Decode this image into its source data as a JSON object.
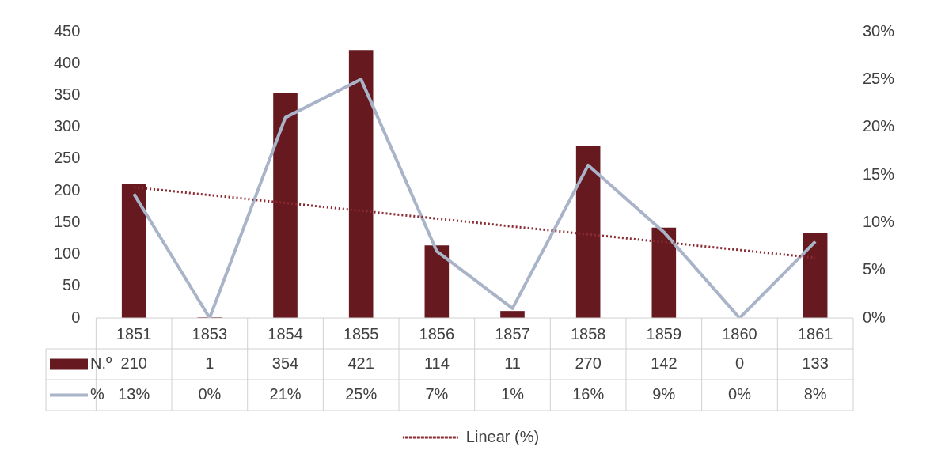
{
  "chart_data": {
    "type": "bar",
    "categories": [
      "1851",
      "1853",
      "1854",
      "1855",
      "1856",
      "1857",
      "1858",
      "1859",
      "1860",
      "1861"
    ],
    "series": [
      {
        "name": "N.º",
        "color": "#661a1f",
        "values": [
          210,
          1,
          354,
          421,
          114,
          11,
          270,
          142,
          0,
          133
        ],
        "value_labels": [
          "210",
          "1",
          "354",
          "421",
          "114",
          "11",
          "270",
          "142",
          "0",
          "133"
        ]
      },
      {
        "name": "%",
        "type": "line",
        "axis": "y2",
        "color": "#a9b4c9",
        "values": [
          13,
          0,
          21,
          25,
          7,
          1,
          16,
          9,
          0,
          8
        ],
        "value_labels": [
          "13%",
          "0%",
          "21%",
          "25%",
          "7%",
          "1%",
          "16%",
          "9%",
          "0%",
          "8%"
        ]
      },
      {
        "name": "Linear (%)",
        "type": "line",
        "axis": "y2",
        "color": "#8a2a33",
        "line_style": "dotted",
        "values": [
          13.7,
          null,
          null,
          null,
          null,
          null,
          null,
          null,
          null,
          6.3
        ]
      }
    ],
    "ylim": [
      0,
      450
    ],
    "yticks": [
      0,
      50,
      100,
      150,
      200,
      250,
      300,
      350,
      400,
      450
    ],
    "y2lim": [
      0,
      30
    ],
    "y2ticks": [
      {
        "value": 0,
        "label": "0%"
      },
      {
        "value": 5,
        "label": "5%"
      },
      {
        "value": 10,
        "label": "10%"
      },
      {
        "value": 15,
        "label": "15%"
      },
      {
        "value": 20,
        "label": "20%"
      },
      {
        "value": 25,
        "label": "25%"
      },
      {
        "value": 30,
        "label": "30%"
      }
    ],
    "grid": false,
    "legend": "bottom",
    "marker": "none"
  }
}
